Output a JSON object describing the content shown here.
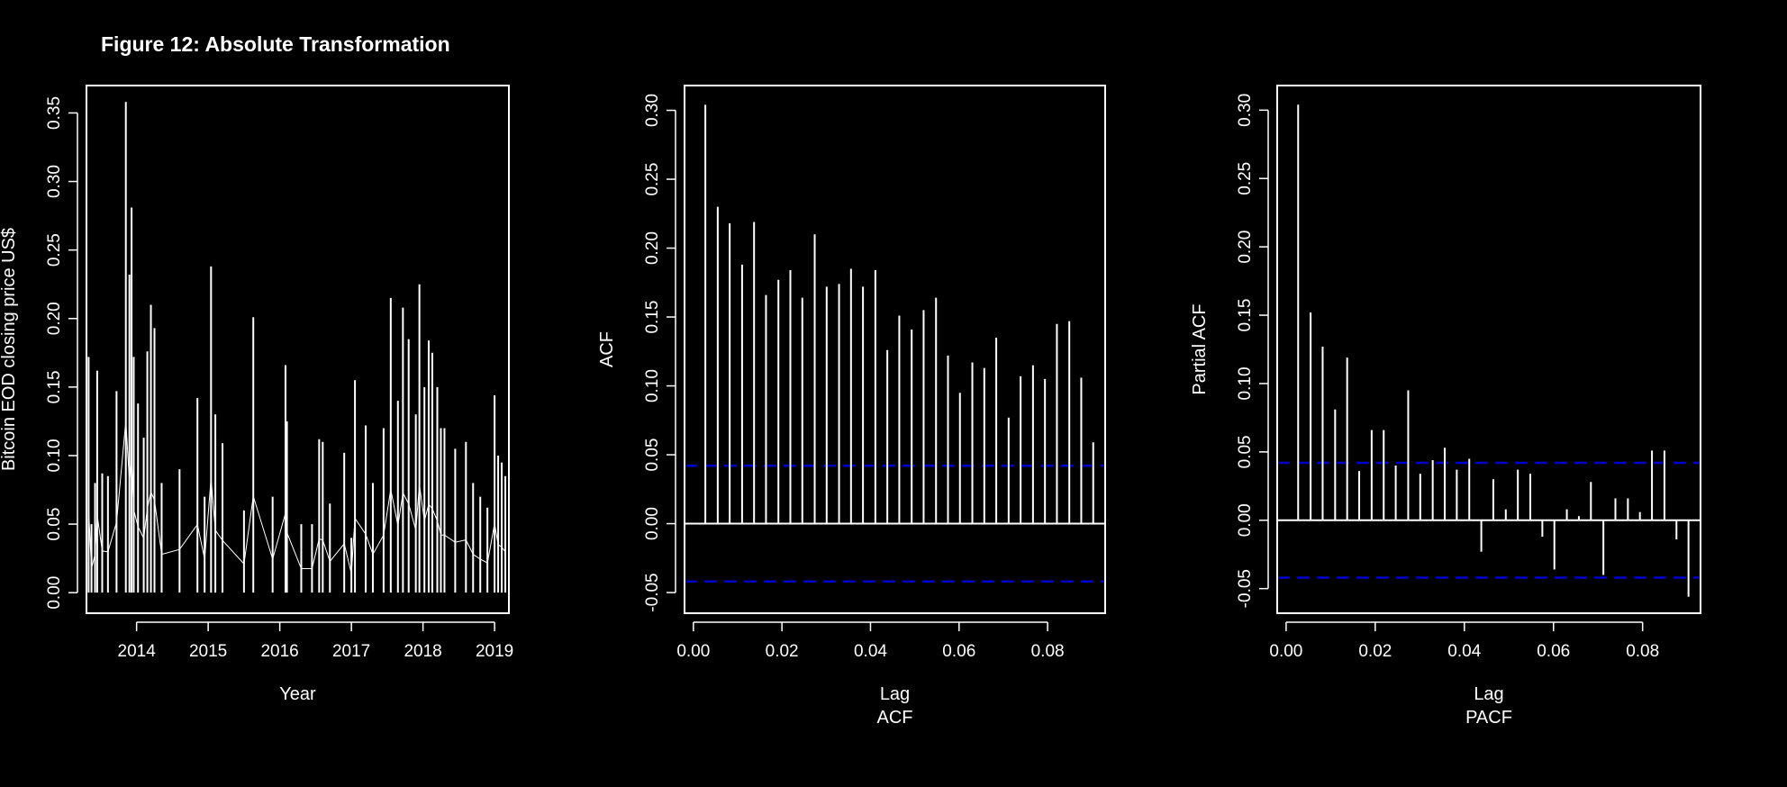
{
  "figure_title": "Figure  12: Absolute Transformation",
  "colors": {
    "background": "#000000",
    "foreground": "#ffffff",
    "confidence": "#0000cd"
  },
  "chart_data": [
    {
      "type": "line",
      "title": "",
      "xlabel": "Year",
      "ylabel": "Bitcoin EOD closing price US$",
      "xlim": [
        2013.3,
        2019.2
      ],
      "ylim": [
        -0.015,
        0.37
      ],
      "xticks": [
        2014,
        2015,
        2016,
        2017,
        2018,
        2019
      ],
      "xtick_labels": [
        "2014",
        "2015",
        "2016",
        "2017",
        "2018",
        "2019"
      ],
      "yticks": [
        0.0,
        0.05,
        0.1,
        0.15,
        0.2,
        0.25,
        0.3,
        0.35
      ],
      "ytick_labels": [
        "0.00",
        "0.05",
        "0.10",
        "0.15",
        "0.20",
        "0.25",
        "0.30",
        "0.35"
      ],
      "series": [
        {
          "x": [
            2013.33,
            2013.37,
            2013.42,
            2013.45,
            2013.52,
            2013.6,
            2013.72,
            2013.85,
            2013.9,
            2013.93,
            2013.96,
            2014.02,
            2014.1,
            2014.15,
            2014.2,
            2014.25,
            2014.35,
            2014.6,
            2014.85,
            2014.95,
            2015.04,
            2015.1,
            2015.2,
            2015.5,
            2015.63,
            2015.9,
            2016.08,
            2016.1,
            2016.3,
            2016.45,
            2016.55,
            2016.6,
            2016.7,
            2016.9,
            2017.0,
            2017.05,
            2017.2,
            2017.3,
            2017.45,
            2017.55,
            2017.65,
            2017.72,
            2017.8,
            2017.9,
            2017.95,
            2018.02,
            2018.08,
            2018.13,
            2018.2,
            2018.25,
            2018.3,
            2018.45,
            2018.6,
            2018.7,
            2018.8,
            2018.9,
            2019.0,
            2019.05,
            2019.1,
            2019.15
          ],
          "y": [
            0.172,
            0.05,
            0.08,
            0.162,
            0.087,
            0.085,
            0.147,
            0.358,
            0.232,
            0.281,
            0.172,
            0.138,
            0.113,
            0.176,
            0.21,
            0.193,
            0.08,
            0.09,
            0.142,
            0.07,
            0.238,
            0.13,
            0.109,
            0.06,
            0.201,
            0.07,
            0.166,
            0.125,
            0.05,
            0.05,
            0.112,
            0.11,
            0.065,
            0.102,
            0.04,
            0.155,
            0.122,
            0.08,
            0.12,
            0.215,
            0.14,
            0.208,
            0.185,
            0.13,
            0.225,
            0.15,
            0.184,
            0.175,
            0.15,
            0.12,
            0.12,
            0.105,
            0.11,
            0.08,
            0.07,
            0.062,
            0.144,
            0.1,
            0.095,
            0.085
          ]
        }
      ]
    },
    {
      "type": "bar",
      "title": "",
      "xlabel": "Lag",
      "subtitle": "ACF",
      "ylabel": "ACF",
      "xlim": [
        -0.002,
        0.093
      ],
      "ylim": [
        -0.065,
        0.318
      ],
      "xticks": [
        0.0,
        0.02,
        0.04,
        0.06,
        0.08
      ],
      "xtick_labels": [
        "0.00",
        "0.02",
        "0.04",
        "0.06",
        "0.08"
      ],
      "yticks": [
        -0.05,
        0.0,
        0.05,
        0.1,
        0.15,
        0.2,
        0.25,
        0.3
      ],
      "ytick_labels": [
        "-0.05",
        "0.00",
        "0.05",
        "0.10",
        "0.15",
        "0.20",
        "0.25",
        "0.30"
      ],
      "confidence_bound": 0.042,
      "lags": [
        0.0027,
        0.0055,
        0.0082,
        0.011,
        0.0137,
        0.0164,
        0.0192,
        0.0219,
        0.0246,
        0.0274,
        0.0301,
        0.0329,
        0.0356,
        0.0383,
        0.0411,
        0.0438,
        0.0465,
        0.0493,
        0.052,
        0.0548,
        0.0575,
        0.0602,
        0.063,
        0.0657,
        0.0684,
        0.0712,
        0.0739,
        0.0767,
        0.0794,
        0.0821,
        0.0849,
        0.0876,
        0.0903
      ],
      "values": [
        0.304,
        0.23,
        0.218,
        0.188,
        0.219,
        0.166,
        0.177,
        0.184,
        0.164,
        0.21,
        0.172,
        0.174,
        0.185,
        0.172,
        0.184,
        0.126,
        0.151,
        0.141,
        0.155,
        0.164,
        0.122,
        0.095,
        0.117,
        0.113,
        0.135,
        0.077,
        0.107,
        0.115,
        0.105,
        0.145,
        0.147,
        0.106,
        0.059
      ]
    },
    {
      "type": "bar",
      "title": "",
      "xlabel": "Lag",
      "subtitle": "PACF",
      "ylabel": "Partial ACF",
      "xlim": [
        -0.002,
        0.093
      ],
      "ylim": [
        -0.068,
        0.318
      ],
      "xticks": [
        0.0,
        0.02,
        0.04,
        0.06,
        0.08
      ],
      "xtick_labels": [
        "0.00",
        "0.02",
        "0.04",
        "0.06",
        "0.08"
      ],
      "yticks": [
        -0.05,
        0.0,
        0.05,
        0.1,
        0.15,
        0.2,
        0.25,
        0.3
      ],
      "ytick_labels": [
        "-0.05",
        "0.00",
        "0.05",
        "0.10",
        "0.15",
        "0.20",
        "0.25",
        "0.30"
      ],
      "confidence_bound": 0.042,
      "lags": [
        0.0027,
        0.0055,
        0.0082,
        0.011,
        0.0137,
        0.0164,
        0.0192,
        0.0219,
        0.0246,
        0.0274,
        0.0301,
        0.0329,
        0.0356,
        0.0383,
        0.0411,
        0.0438,
        0.0465,
        0.0493,
        0.052,
        0.0548,
        0.0575,
        0.0602,
        0.063,
        0.0657,
        0.0684,
        0.0712,
        0.0739,
        0.0767,
        0.0794,
        0.0821,
        0.0849,
        0.0876,
        0.0903
      ],
      "values": [
        0.304,
        0.152,
        0.127,
        0.081,
        0.119,
        0.036,
        0.066,
        0.066,
        0.04,
        0.095,
        0.034,
        0.044,
        0.053,
        0.037,
        0.045,
        -0.023,
        0.03,
        0.008,
        0.037,
        0.034,
        -0.012,
        -0.036,
        0.008,
        0.003,
        0.028,
        -0.04,
        0.016,
        0.016,
        0.006,
        0.051,
        0.051,
        -0.014,
        -0.056
      ]
    }
  ]
}
